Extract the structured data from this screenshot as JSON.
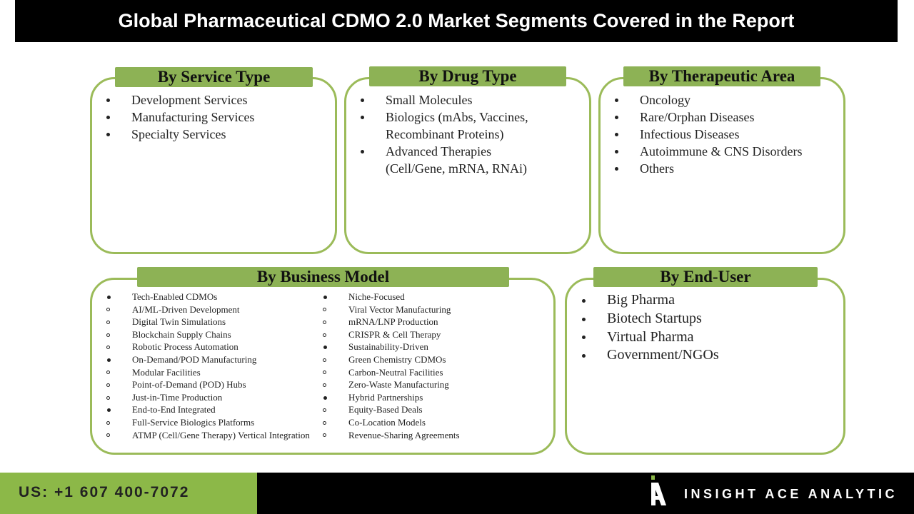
{
  "header": {
    "title": "Global Pharmaceutical CDMO 2.0 Market Segments Covered in the Report"
  },
  "panels": [
    {
      "title": "By Service Type",
      "items": [
        "Development Services",
        "Manufacturing Services",
        "Specialty Services"
      ]
    },
    {
      "title": "By Drug Type",
      "items": [
        "Small Molecules",
        "Biologics (mAbs, Vaccines, Recombinant Proteins)",
        "Advanced Therapies (Cell/Gene, mRNA, RNAi)"
      ]
    },
    {
      "title": "By Therapeutic Area",
      "items": [
        "Oncology",
        "Rare/Orphan Diseases",
        "Infectious Diseases",
        "Autoimmune & CNS Disorders",
        "Others"
      ]
    },
    {
      "title": "By Business Model",
      "columns": [
        [
          {
            "text": "Tech-Enabled CDMOs",
            "subitems": [
              "AI/ML-Driven Development",
              "Digital Twin Simulations",
              "Blockchain Supply Chains",
              "Robotic Process Automation"
            ]
          },
          {
            "text": "On-Demand/POD Manufacturing",
            "subitems": [
              "Modular Facilities",
              "Point-of-Demand (POD) Hubs",
              "Just-in-Time Production"
            ]
          },
          {
            "text": "End-to-End Integrated",
            "subitems": [
              "Full-Service Biologics Platforms",
              "ATMP (Cell/Gene Therapy) Vertical Integration"
            ]
          }
        ],
        [
          {
            "text": "Niche-Focused",
            "subitems": [
              "Viral Vector Manufacturing",
              "mRNA/LNP Production",
              "CRISPR & Cell Therapy"
            ]
          },
          {
            "text": "Sustainability-Driven",
            "subitems": [
              "Green Chemistry CDMOs",
              "Carbon-Neutral Facilities",
              "Zero-Waste Manufacturing"
            ]
          },
          {
            "text": "Hybrid Partnerships",
            "subitems": [
              "Equity-Based Deals",
              "Co-Location Models",
              "Revenue-Sharing Agreements"
            ]
          }
        ]
      ]
    },
    {
      "title": "By End-User",
      "items": [
        "Big Pharma",
        "Biotech Startups",
        "Virtual Pharma",
        "Government/NGOs"
      ]
    }
  ],
  "footer": {
    "phone": "US: +1 607 400-7072",
    "brand": "INSIGHT ACE ANALYTIC"
  }
}
